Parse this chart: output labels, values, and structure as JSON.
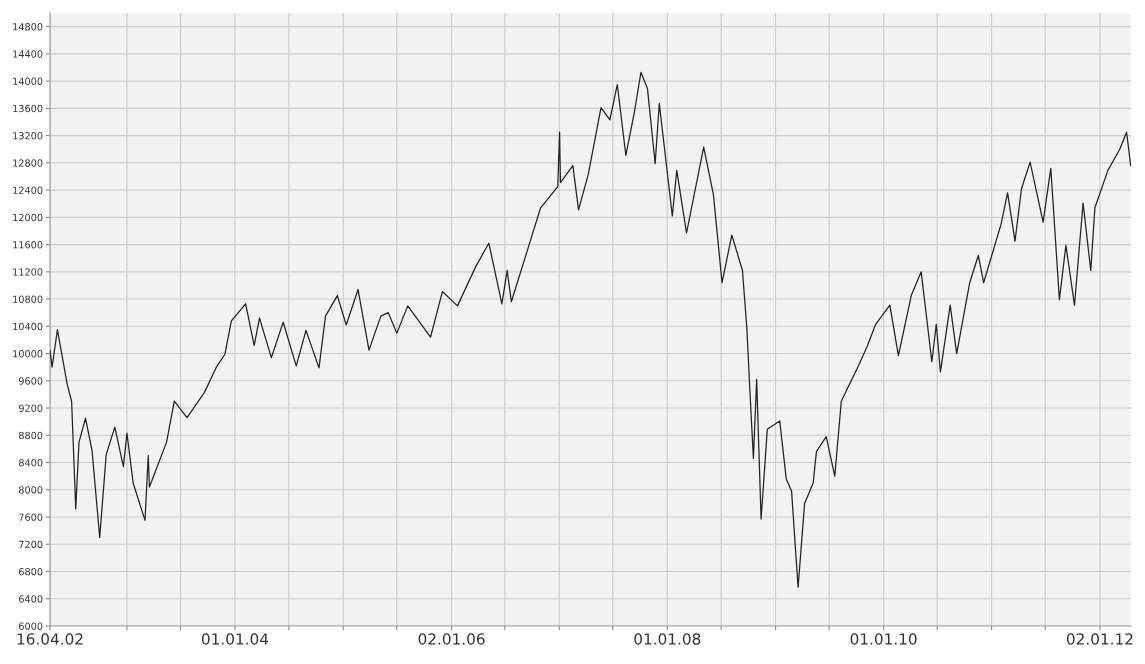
{
  "chart_data": {
    "type": "line",
    "grid": true,
    "marker": "none",
    "line_style": "solid",
    "xlim": [
      "2002-04-16",
      "2012-04-16"
    ],
    "ylim": [
      6000,
      15000
    ],
    "yticks": [
      6000,
      6400,
      6800,
      7200,
      7600,
      8000,
      8400,
      8800,
      9200,
      9600,
      10000,
      10400,
      10800,
      11200,
      11600,
      12000,
      12400,
      12800,
      13200,
      13600,
      14000,
      14400,
      14800
    ],
    "xticks": [
      {
        "value": "2002-04-16",
        "label": "16.04.02"
      },
      {
        "value": "2003-01-01",
        "label": null
      },
      {
        "value": "2003-07-01",
        "label": null
      },
      {
        "value": "2004-01-01",
        "label": "01.01.04"
      },
      {
        "value": "2004-07-01",
        "label": null
      },
      {
        "value": "2005-01-01",
        "label": null
      },
      {
        "value": "2005-07-01",
        "label": null
      },
      {
        "value": "2006-01-02",
        "label": "02.01.06"
      },
      {
        "value": "2006-07-01",
        "label": null
      },
      {
        "value": "2007-01-01",
        "label": null
      },
      {
        "value": "2007-07-01",
        "label": null
      },
      {
        "value": "2008-01-01",
        "label": "01.01.08"
      },
      {
        "value": "2008-07-01",
        "label": null
      },
      {
        "value": "2009-01-01",
        "label": null
      },
      {
        "value": "2009-07-01",
        "label": null
      },
      {
        "value": "2010-01-01",
        "label": "01.01.10"
      },
      {
        "value": "2010-07-01",
        "label": null
      },
      {
        "value": "2011-01-01",
        "label": null
      },
      {
        "value": "2011-07-01",
        "label": null
      },
      {
        "value": "2012-01-02",
        "label": "02.01.12"
      }
    ],
    "series": [
      {
        "color": "#222222",
        "x": [
          "2002-04-16",
          "2002-04-23",
          "2002-05-11",
          "2002-06-13",
          "2002-06-28",
          "2002-07-12",
          "2002-07-23",
          "2002-08-14",
          "2002-09-05",
          "2002-10-01",
          "2002-10-23",
          "2002-11-21",
          "2002-12-20",
          "2003-01-01",
          "2003-01-22",
          "2003-03-03",
          "2003-03-14",
          "2003-03-18",
          "2003-05-15",
          "2003-06-10",
          "2003-07-23",
          "2003-09-20",
          "2003-10-30",
          "2003-11-28",
          "2003-12-20",
          "2004-02-06",
          "2004-03-06",
          "2004-03-24",
          "2004-05-03",
          "2004-06-12",
          "2004-07-26",
          "2004-08-28",
          "2004-10-11",
          "2004-11-02",
          "2004-12-12",
          "2005-01-11",
          "2005-02-20",
          "2005-03-29",
          "2005-05-08",
          "2005-06-02",
          "2005-07-01",
          "2005-08-07",
          "2005-10-23",
          "2005-12-02",
          "2006-01-22",
          "2006-03-25",
          "2006-05-08",
          "2006-06-21",
          "2006-07-09",
          "2006-07-23",
          "2006-09-12",
          "2006-10-30",
          "2006-12-27",
          "2007-01-02",
          "2007-01-05",
          "2007-02-16",
          "2007-03-07",
          "2007-04-09",
          "2007-05-22",
          "2007-06-21",
          "2007-07-16",
          "2007-08-14",
          "2007-09-12",
          "2007-10-04",
          "2007-10-26",
          "2007-11-21",
          "2007-12-05",
          "2008-01-18",
          "2008-02-02",
          "2008-03-06",
          "2008-05-03",
          "2008-06-05",
          "2008-07-04",
          "2008-08-06",
          "2008-09-11",
          "2008-09-26",
          "2008-10-07",
          "2008-10-18",
          "2008-10-29",
          "2008-11-13",
          "2008-12-04",
          "2009-01-15",
          "2009-02-06",
          "2009-02-24",
          "2009-03-18",
          "2009-04-09",
          "2009-05-08",
          "2009-05-19",
          "2009-06-21",
          "2009-07-20",
          "2009-08-11",
          "2009-10-08",
          "2009-11-06",
          "2009-12-05",
          "2010-01-22",
          "2010-02-20",
          "2010-04-05",
          "2010-05-08",
          "2010-06-13",
          "2010-06-28",
          "2010-07-12",
          "2010-08-14",
          "2010-09-05",
          "2010-10-19",
          "2010-11-17",
          "2010-12-05",
          "2011-02-02",
          "2011-02-24",
          "2011-03-21",
          "2011-04-12",
          "2011-05-11",
          "2011-06-24",
          "2011-07-20",
          "2011-08-18",
          "2011-09-09",
          "2011-10-08",
          "2011-11-06",
          "2011-12-02",
          "2011-12-16",
          "2012-01-29",
          "2012-03-09",
          "2012-04-01",
          "2012-04-15"
        ],
        "values": [
          10050,
          9800,
          10350,
          9550,
          9300,
          7720,
          8700,
          9050,
          8580,
          7300,
          8520,
          8920,
          8340,
          8830,
          8100,
          7550,
          8500,
          8040,
          8700,
          9300,
          9060,
          9430,
          9800,
          9990,
          10480,
          10730,
          10120,
          10520,
          9940,
          10460,
          9820,
          10340,
          9790,
          10550,
          10850,
          10420,
          10940,
          10050,
          10550,
          10600,
          10300,
          10700,
          10240,
          10910,
          10700,
          11280,
          11620,
          10730,
          11220,
          10760,
          11470,
          12140,
          12450,
          13250,
          12510,
          12760,
          12110,
          12630,
          13610,
          13430,
          13950,
          12910,
          13550,
          14130,
          13890,
          12790,
          13670,
          12020,
          12690,
          11770,
          13030,
          12330,
          11040,
          11740,
          11220,
          10360,
          9380,
          8460,
          9620,
          7570,
          8890,
          9010,
          8160,
          7980,
          6570,
          7800,
          8100,
          8560,
          8780,
          8200,
          9300,
          9820,
          10100,
          10430,
          10710,
          9970,
          10860,
          11200,
          9880,
          10430,
          9730,
          10710,
          10000,
          11040,
          11440,
          11040,
          11900,
          12360,
          11650,
          12420,
          12810,
          11930,
          12720,
          10790,
          11590,
          10710,
          12210,
          11220,
          12140,
          12690,
          13000,
          13250,
          12760
        ]
      }
    ]
  }
}
